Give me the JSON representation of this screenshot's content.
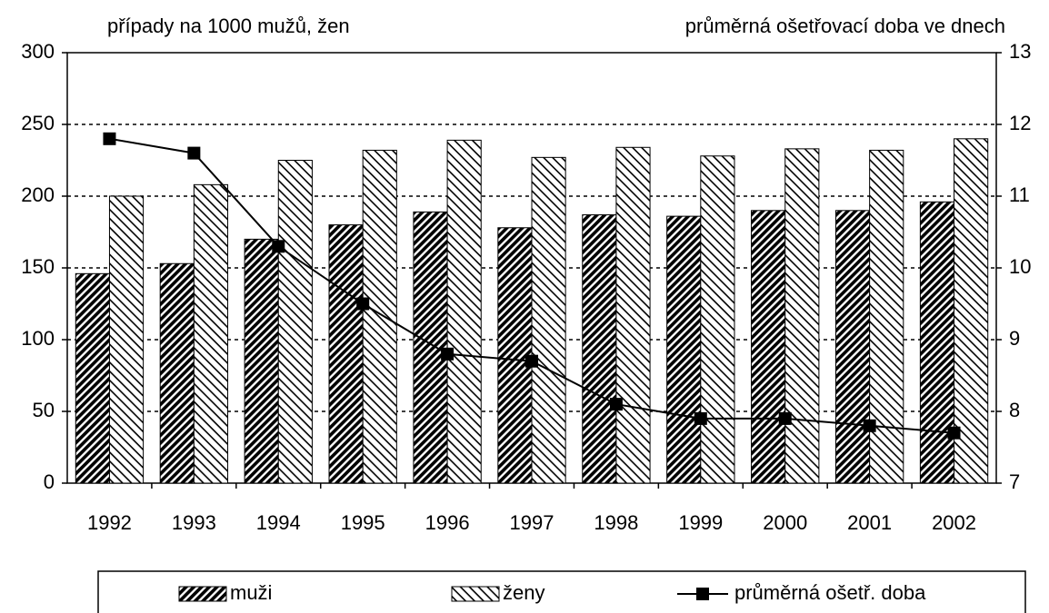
{
  "chart_data": {
    "type": "bar",
    "ylabel": "případy na 1000 mužů, žen",
    "y2label": "průměrná ošetřovací doba ve dnech",
    "categories": [
      "1992",
      "1993",
      "1994",
      "1995",
      "1996",
      "1997",
      "1998",
      "1999",
      "2000",
      "2001",
      "2002"
    ],
    "series": [
      {
        "name": "muži",
        "type": "bar",
        "color": "#000000",
        "values": [
          146,
          153,
          170,
          180,
          189,
          178,
          187,
          186,
          190,
          190,
          196
        ]
      },
      {
        "name": "ženy",
        "type": "bar",
        "color": "#000000",
        "values": [
          200,
          208,
          225,
          232,
          239,
          227,
          234,
          228,
          233,
          232,
          240
        ]
      },
      {
        "name": "průměrná ošetř. doba",
        "type": "line",
        "axis": "y2",
        "color": "#000000",
        "values": [
          11.8,
          11.6,
          10.3,
          9.5,
          8.8,
          8.7,
          8.1,
          7.9,
          7.9,
          7.8,
          7.7
        ]
      }
    ],
    "ylim": [
      0,
      300
    ],
    "yticks": [
      0,
      50,
      100,
      150,
      200,
      250,
      300
    ],
    "y2lim": [
      7,
      13
    ],
    "y2ticks": [
      7,
      8,
      9,
      10,
      11,
      12,
      13
    ],
    "grid": true,
    "legend": "bottom"
  }
}
